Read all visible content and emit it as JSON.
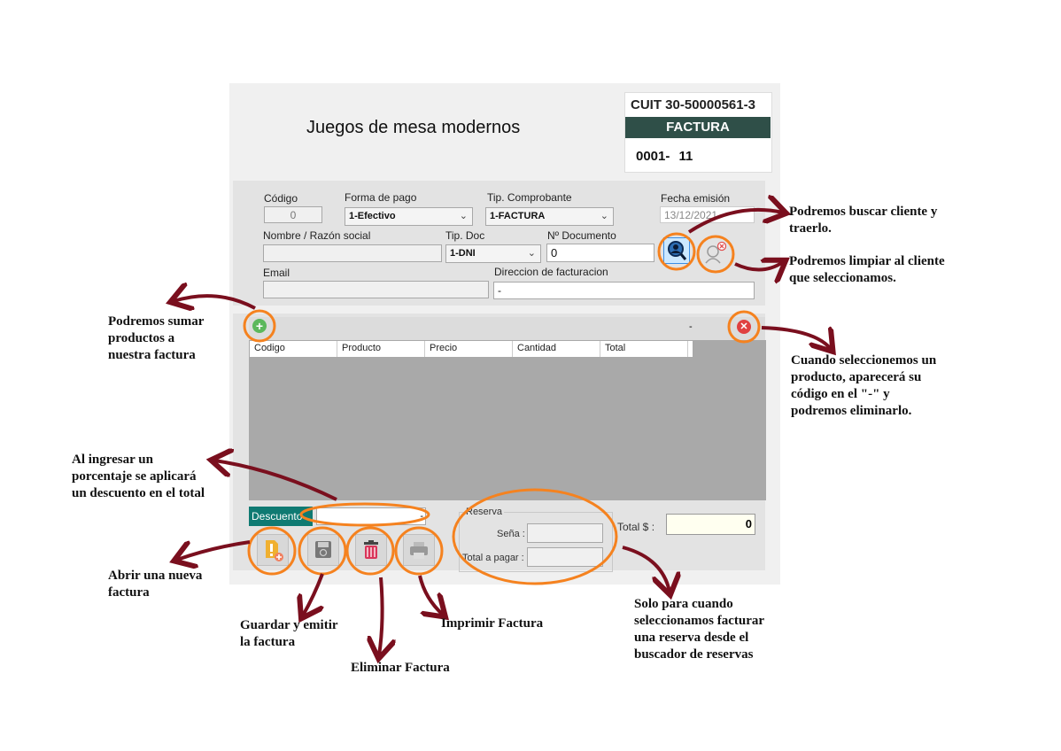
{
  "header": {
    "title": "Juegos de mesa modernos",
    "cuit_label": "CUIT",
    "cuit_value": "30-50000561-3",
    "doc_type": "FACTURA",
    "punto_venta": "0001-",
    "numero": "11"
  },
  "form": {
    "codigo_label": "Código",
    "codigo_value": "0",
    "forma_pago_label": "Forma de pago",
    "forma_pago_value": "1-Efectivo",
    "tip_comprobante_label": "Tip. Comprobante",
    "tip_comprobante_value": "1-FACTURA",
    "fecha_label": "Fecha emisión",
    "fecha_value": "13/12/2021",
    "nombre_label": "Nombre / Razón social",
    "nombre_value": "",
    "tip_doc_label": "Tip. Doc",
    "tip_doc_value": "1-DNI",
    "nro_doc_label": "Nº Documento",
    "nro_doc_value": "0",
    "email_label": "Email",
    "email_value": "",
    "direccion_label": "Direccion de facturacion",
    "direccion_value": "-"
  },
  "grid": {
    "selected_code": "-",
    "columns": [
      "Codigo",
      "Producto",
      "Precio",
      "Cantidad",
      "Total"
    ]
  },
  "footer": {
    "descuento_label": "Descuento",
    "descuento_value": "-",
    "reserva_label": "Reserva",
    "sena_label": "Seña :",
    "total_pagar_label": "Total a pagar :",
    "total_label": "Total $ :",
    "total_value": "0"
  },
  "annotations": {
    "buscar_cliente": [
      "Podremos buscar cliente y",
      "traerlo."
    ],
    "limpiar_cliente": [
      "Podremos limpiar al cliente",
      "que seleccionamos."
    ],
    "sumar_productos": [
      "Podremos sumar",
      "productos a",
      "nuestra factura"
    ],
    "eliminar_producto": [
      "Cuando seleccionemos un",
      "producto, aparecerá su",
      "código en el \"-\" y",
      "podremos eliminarlo."
    ],
    "descuento": [
      "Al ingresar un",
      "porcentaje se aplicará",
      "un descuento en el total"
    ],
    "nueva_factura": [
      "Abrir una nueva",
      "factura"
    ],
    "guardar": [
      "Guardar y emitir",
      "la factura"
    ],
    "eliminar_factura": [
      "Eliminar Factura"
    ],
    "imprimir": [
      "Imprimir Factura"
    ],
    "reserva": [
      "Solo para cuando",
      "seleccionamos facturar",
      "una reserva desde el",
      "buscador de reservas"
    ]
  },
  "colors": {
    "header_bar": "#2f4f48",
    "descuento_bg": "#0f7a72",
    "highlight": "#f5821f",
    "arrow": "#7a0f1e"
  }
}
